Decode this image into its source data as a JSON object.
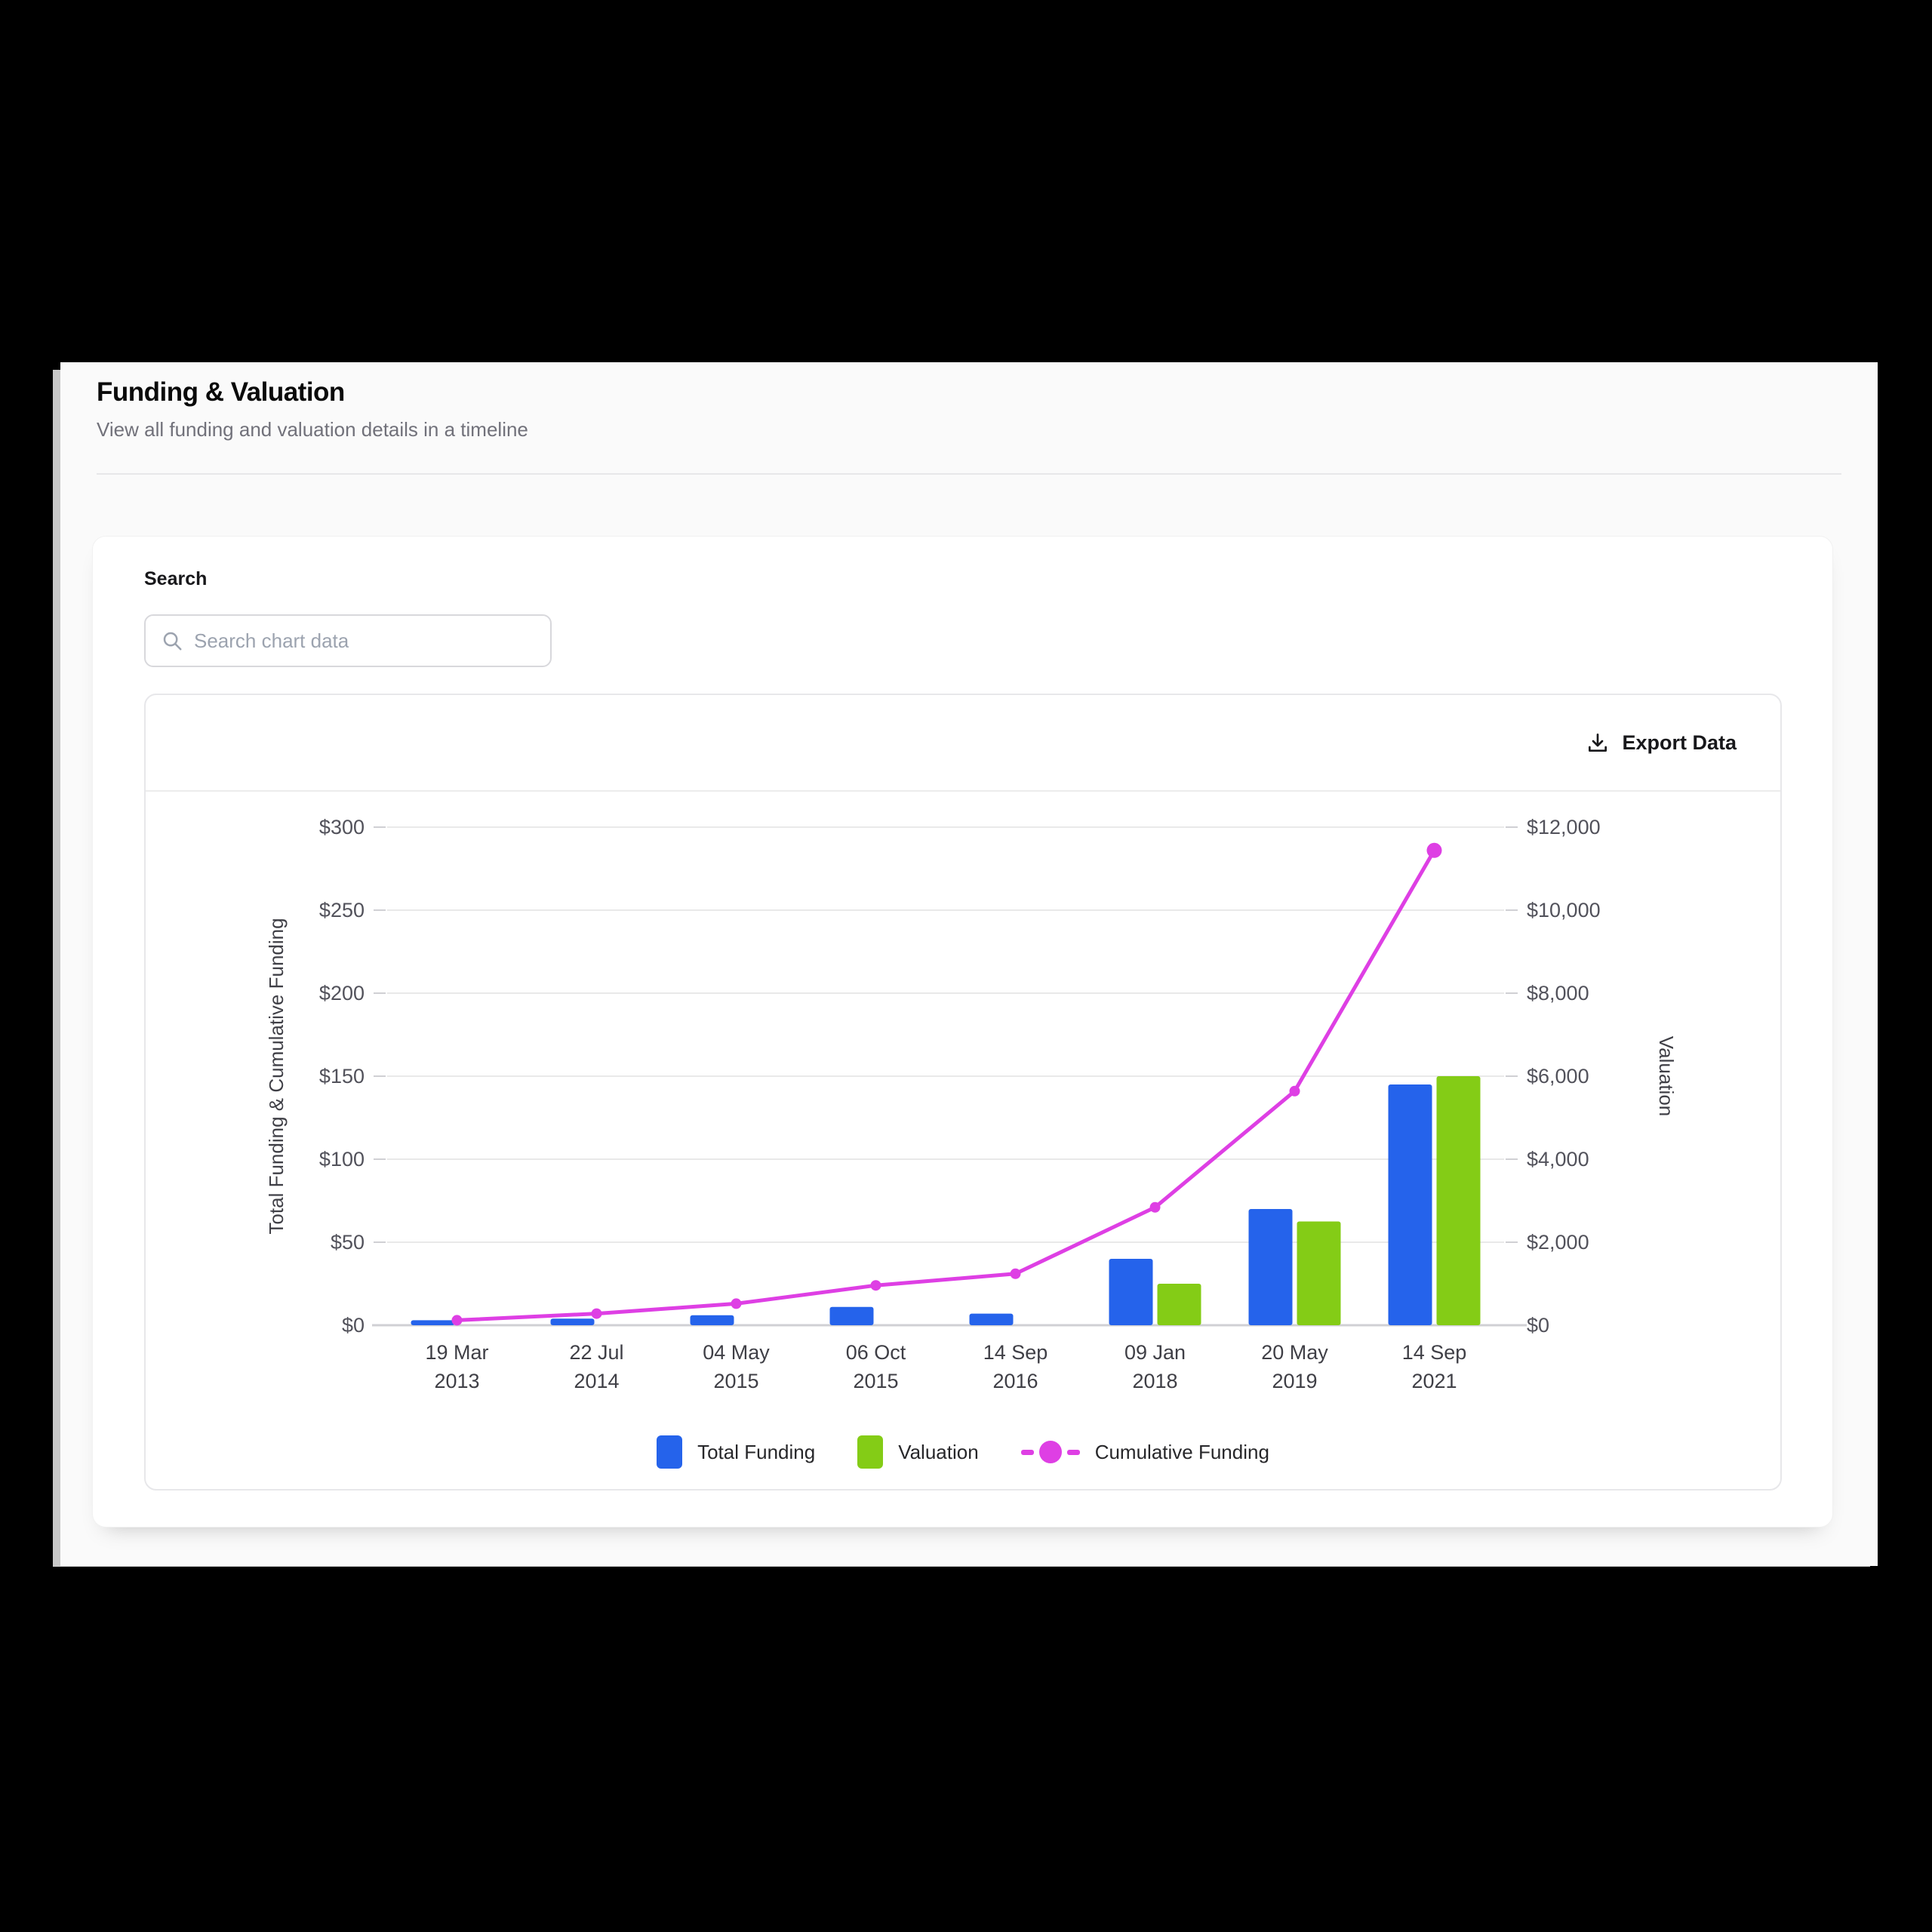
{
  "header": {
    "title": "Funding & Valuation",
    "subtitle": "View all funding and valuation details in a timeline"
  },
  "search": {
    "label": "Search",
    "placeholder": "Search chart data",
    "value": ""
  },
  "toolbar": {
    "export_label": "Export Data"
  },
  "colors": {
    "total_funding": "#2563eb",
    "valuation": "#84cc16",
    "cumulative": "#de3fe4",
    "gridline": "#e9e9e9",
    "axis_line": "#d0d0d4"
  },
  "chart_data": {
    "type": "bar",
    "subtype": "combo-bar-line-dual-axis",
    "categories": [
      {
        "date": "19 Mar",
        "year": "2013"
      },
      {
        "date": "22 Jul",
        "year": "2014"
      },
      {
        "date": "04 May",
        "year": "2015"
      },
      {
        "date": "06 Oct",
        "year": "2015"
      },
      {
        "date": "14 Sep",
        "year": "2016"
      },
      {
        "date": "09 Jan",
        "year": "2018"
      },
      {
        "date": "20 May",
        "year": "2019"
      },
      {
        "date": "14 Sep",
        "year": "2021"
      }
    ],
    "series": [
      {
        "name": "Total Funding",
        "type": "bar",
        "axis": "left",
        "color": "#2563eb",
        "values": [
          3,
          4,
          6,
          11,
          7,
          40,
          70,
          145
        ]
      },
      {
        "name": "Valuation",
        "type": "bar",
        "axis": "right",
        "color": "#84cc16",
        "values": [
          null,
          null,
          null,
          null,
          null,
          1000,
          2500,
          6000
        ]
      },
      {
        "name": "Cumulative Funding",
        "type": "line",
        "axis": "left",
        "color": "#de3fe4",
        "values": [
          3,
          7,
          13,
          24,
          31,
          71,
          141,
          286
        ]
      }
    ],
    "left_axis": {
      "title": "Total Funding & Cumulative Funding",
      "min": 0,
      "max": 300,
      "step": 50,
      "tick_labels": [
        "$0",
        "$50",
        "$100",
        "$150",
        "$200",
        "$250",
        "$300"
      ]
    },
    "right_axis": {
      "title": "Valuation",
      "min": 0,
      "max": 12000,
      "step": 2000,
      "tick_labels": [
        "$0",
        "$2,000",
        "$4,000",
        "$6,000",
        "$8,000",
        "$10,000",
        "$12,000"
      ]
    },
    "grid": true,
    "legend_position": "bottom"
  }
}
